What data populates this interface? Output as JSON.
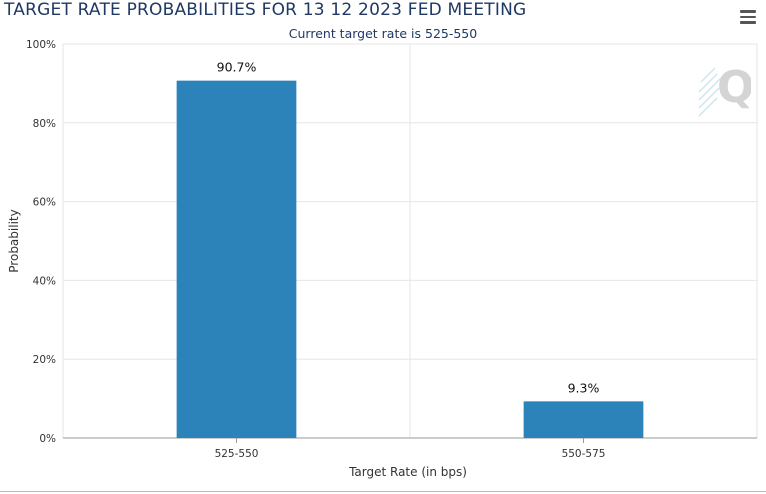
{
  "chart_data": {
    "type": "bar",
    "title": "TARGET RATE PROBABILITIES FOR 13 12 2023 FED MEETING",
    "subtitle": "Current target rate is 525-550",
    "xlabel": "Target Rate (in bps)",
    "ylabel": "Probability",
    "categories": [
      "525-550",
      "550-575"
    ],
    "values": [
      90.7,
      9.3
    ],
    "data_labels": [
      "90.7%",
      "9.3%"
    ],
    "ylim": [
      0,
      100
    ],
    "yticks": [
      "0%",
      "20%",
      "40%",
      "60%",
      "80%",
      "100%"
    ],
    "grid": true,
    "legend": "none",
    "bar_color": "#2b83ba"
  },
  "toolbar": {
    "menu_icon": "hamburger-menu-icon"
  },
  "watermark": {
    "icon": "q-logo-icon",
    "text": "Q"
  }
}
